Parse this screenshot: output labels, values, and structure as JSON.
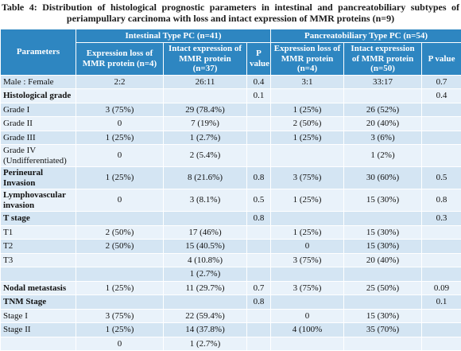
{
  "title": "Table 4: Distribution of histological prognostic parameters in intestinal and pancreatobiliary subtypes of periampullary carcinoma with loss and intact expression of MMR proteins (n=9)",
  "header": {
    "parameters": "Parameters",
    "groups": [
      "Intestinal Type PC (n=41)",
      "Pancreatobiliary Type PC (n=54)"
    ],
    "columns": [
      "Expression loss of MMR protein (n=4)",
      "Intact expression of MMR protein (n=37)",
      "P value",
      "Expression loss of MMR protein (n=4)",
      "Intact expression of MMR protein (n=50)",
      "P value"
    ]
  },
  "rows": [
    {
      "label": "Male : Female",
      "cells": [
        "2:2",
        "26:11",
        "0.4",
        "3:1",
        "33:17",
        "0.7"
      ]
    },
    {
      "label": "Histological grade",
      "bold": true,
      "cells": [
        null,
        null,
        "0.1",
        null,
        null,
        "0.4"
      ]
    },
    {
      "label": "Grade I",
      "cells": [
        "3 (75%)",
        "29 (78.4%)",
        null,
        "1 (25%)",
        "26 (52%)",
        null
      ]
    },
    {
      "label": "Grade II",
      "cells": [
        "0",
        "7 (19%)",
        null,
        "2 (50%)",
        "20 (40%)",
        null
      ]
    },
    {
      "label": "Grade III",
      "cells": [
        "1 (25%)",
        "1 (2.7%)",
        null,
        "1 (25%)",
        "3 (6%)",
        null
      ]
    },
    {
      "label": "Grade IV (Undifferentiated)",
      "cells": [
        "0",
        "2 (5.4%)",
        null,
        null,
        "1 (2%)",
        null
      ]
    },
    {
      "label": "Perineural Invasion",
      "bold": true,
      "cells": [
        "1 (25%)",
        "8 (21.6%)",
        "0.8",
        "3 (75%)",
        "30 (60%)",
        "0.5"
      ]
    },
    {
      "label": "Lymphovascular invasion",
      "bold": true,
      "cells": [
        "0",
        "3 (8.1%)",
        "0.5",
        "1 (25%)",
        "15 (30%)",
        "0.8"
      ]
    },
    {
      "label": "T stage",
      "bold": true,
      "cells": [
        null,
        null,
        "0.8",
        null,
        null,
        "0.3"
      ]
    },
    {
      "label": "T1",
      "cells": [
        "2 (50%)",
        "17 (46%)",
        null,
        "1 (25%)",
        "15 (30%)",
        null
      ]
    },
    {
      "label": "T2",
      "cells": [
        "2 (50%)",
        "15 (40.5%)",
        null,
        "0",
        "15 (30%)",
        null
      ]
    },
    {
      "label": "T3",
      "cells": [
        null,
        "4 (10.8%)",
        null,
        "3 (75%)",
        "20 (40%)",
        null
      ]
    },
    {
      "label": null,
      "cells": [
        null,
        "1 (2.7%)",
        null,
        null,
        null,
        null
      ]
    },
    {
      "label": "Nodal metastasis",
      "bold": true,
      "cells": [
        "1 (25%)",
        "11 (29.7%)",
        "0.7",
        "3 (75%)",
        "25 (50%)",
        "0.09"
      ]
    },
    {
      "label": "TNM Stage",
      "bold": true,
      "cells": [
        null,
        null,
        "0.8",
        null,
        null,
        "0.1"
      ]
    },
    {
      "label": "Stage I",
      "cells": [
        "3 (75%)",
        "22 (59.4%)",
        null,
        "0",
        "15 (30%)",
        null
      ]
    },
    {
      "label": "Stage II",
      "cells": [
        "1 (25%)",
        "14 (37.8%)",
        null,
        "4 (100%",
        "35 (70%)",
        null
      ]
    },
    {
      "label": null,
      "cells": [
        "0",
        "1 (2.7%)",
        null,
        null,
        null,
        null
      ]
    }
  ]
}
